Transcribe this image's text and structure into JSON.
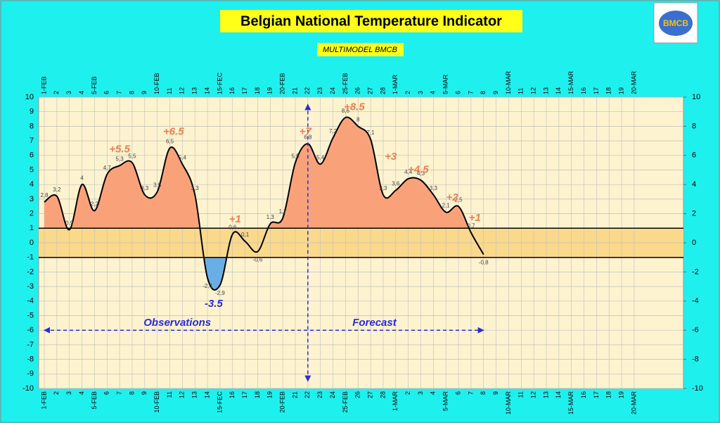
{
  "chart_data": {
    "type": "line",
    "title": "Belgian National Temperature Indicator",
    "subtitle": "MULTIMODEL BMCB",
    "logo": "BMCB",
    "categories": [
      "1-FEB",
      "2",
      "3",
      "4",
      "5-FEB",
      "6",
      "7",
      "8",
      "9",
      "10-FEB",
      "11",
      "12",
      "13",
      "14",
      "15-FEC",
      "16",
      "17",
      "18",
      "19",
      "20-FEB",
      "21",
      "22",
      "23",
      "24",
      "25-FEB",
      "26",
      "27",
      "28",
      "1-MAR",
      "2",
      "3",
      "4",
      "5-MAR",
      "6",
      "7",
      "8",
      "9",
      "10-MAR",
      "11",
      "12",
      "13",
      "14",
      "15-MAR",
      "16",
      "17",
      "18",
      "19",
      "20-MAR"
    ],
    "series": [
      {
        "color": "#000000",
        "values": [
          2.8,
          3.2,
          0.9,
          4,
          2.2,
          4.7,
          5.3,
          5.5,
          3.3,
          3.5,
          6.5,
          5.4,
          3.3,
          -2.4,
          -2.9,
          0.6,
          0.1,
          -0.6,
          1.3,
          1.7,
          5.5,
          6.8,
          5.4,
          7.2,
          8.6,
          8,
          7.1,
          3.3,
          3.6,
          4.4,
          4.3,
          3.3,
          2.1,
          2.5,
          0.7,
          -0.8,
          null,
          null,
          null,
          null,
          null,
          null,
          null,
          null,
          null,
          null,
          null,
          null
        ],
        "value_labels": [
          "2,8",
          "3,2",
          "0,9",
          "4",
          "2,2",
          "4,7",
          "5,3",
          "5,5",
          "3,3",
          "3,5",
          "6,5",
          "5,4",
          "3,3",
          "-2,4",
          "-2,9",
          "0,6",
          "0,1",
          "-0,6",
          "1,3",
          "1,7",
          "5,5",
          "6,8",
          "5,4",
          "7,2",
          "8,6",
          "8",
          "7,1",
          "3,3",
          "3,6",
          "4,4",
          "4,3",
          "3,3",
          "2,1",
          "2,5",
          "0,7",
          "-0,8",
          null,
          null,
          null,
          null,
          null,
          null,
          null,
          null,
          null,
          null,
          null,
          null
        ]
      }
    ],
    "above_color": "#f9a27a",
    "below_color": "#6aaee6",
    "band_color": "#fbd98a",
    "normal_band": [
      -1,
      1
    ],
    "ylim": [
      -10,
      10
    ],
    "yticks": [
      -10,
      -9,
      -8,
      -7,
      -6,
      -5,
      -4,
      -3,
      -2,
      -1,
      0,
      1,
      2,
      3,
      4,
      5,
      6,
      7,
      8,
      9,
      10
    ],
    "y2lim": [
      -10,
      10
    ],
    "y2ticks": [
      -10,
      -8,
      -6,
      -4,
      -2,
      0,
      2,
      4,
      6,
      8,
      10
    ],
    "grid": true,
    "annotations": [
      "+5.5",
      "+6.5",
      "+1",
      "-3.5",
      "+7",
      "+8.5",
      "+3",
      "+4.5",
      "+2",
      "+1",
      "Observations",
      "Forecast"
    ]
  }
}
